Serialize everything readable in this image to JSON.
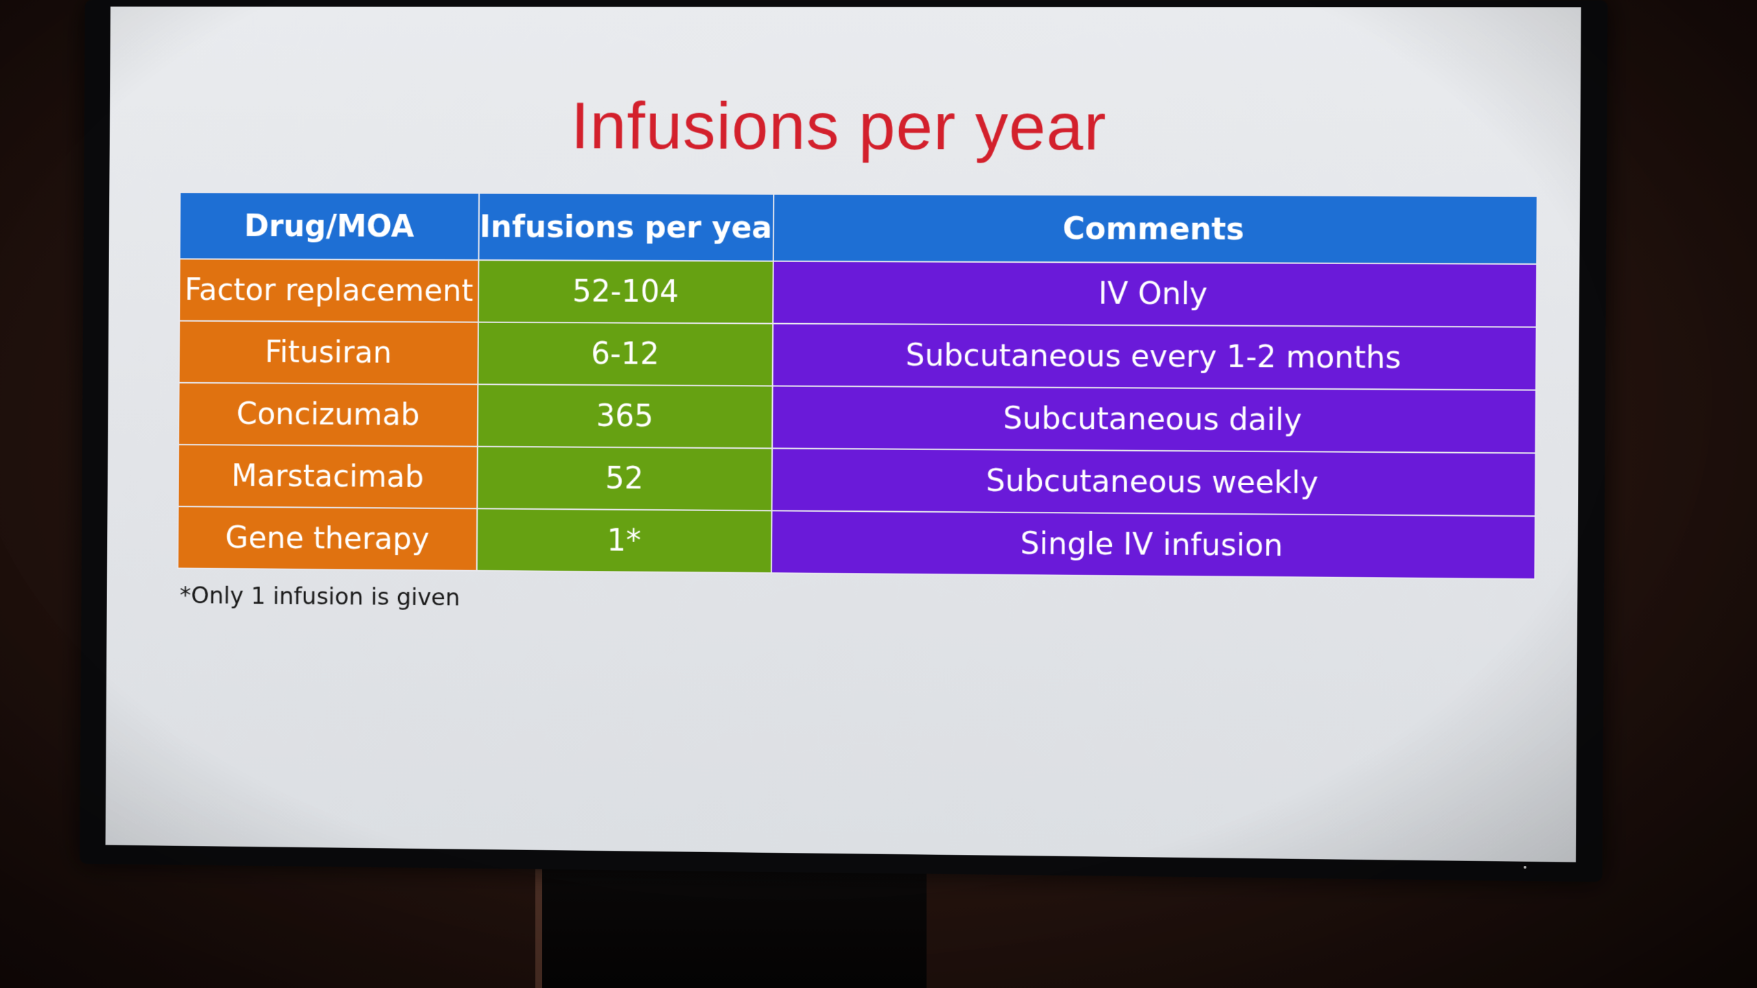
{
  "slide": {
    "title": "Infusions per year",
    "footnote": "*Only 1 infusion is given"
  },
  "table": {
    "headers": [
      "Drug/MOA",
      "Infusions per year",
      "Comments"
    ],
    "rows": [
      {
        "drug": "Factor replacement",
        "infusions": "52-104",
        "comments": "IV Only"
      },
      {
        "drug": "Fitusiran",
        "infusions": "6-12",
        "comments": "Subcutaneous every 1-2 months"
      },
      {
        "drug": "Concizumab",
        "infusions": "365",
        "comments": "Subcutaneous daily"
      },
      {
        "drug": "Marstacimab",
        "infusions": "52",
        "comments": "Subcutaneous weekly"
      },
      {
        "drug": "Gene therapy",
        "infusions": "1*",
        "comments": "Single IV infusion"
      }
    ]
  },
  "colors": {
    "title": "#d3202c",
    "header": "#1e6fd4",
    "drug_column": "#e07210",
    "infusions_column": "#66a112",
    "comments_column": "#6a1ad9"
  }
}
